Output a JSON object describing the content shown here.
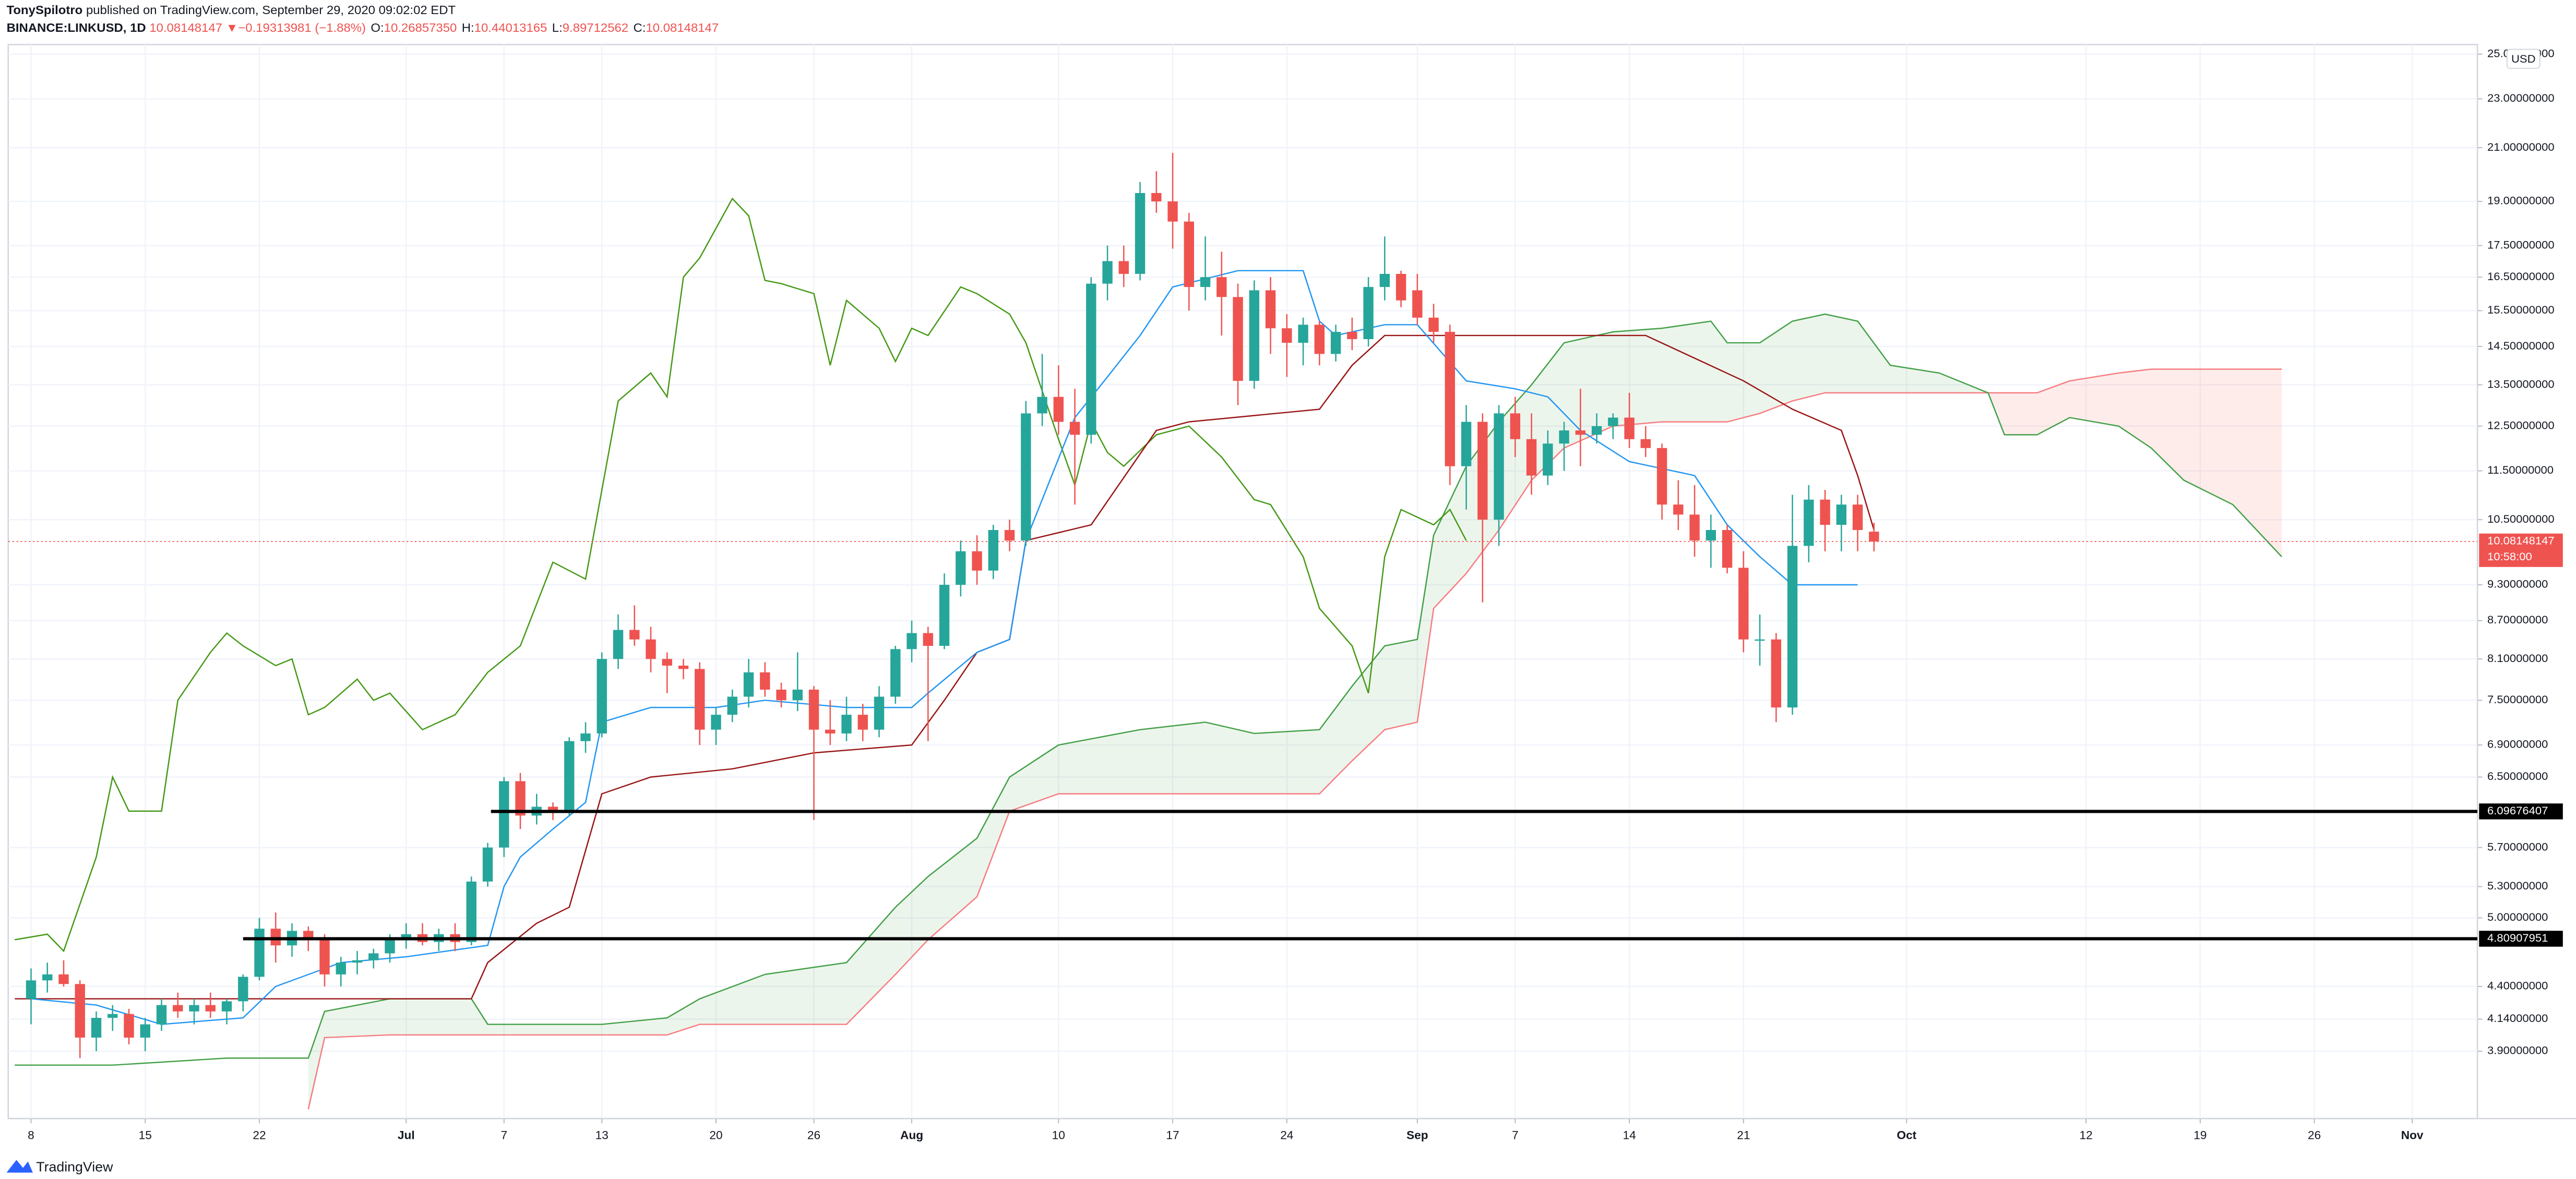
{
  "header": {
    "author": "TonySpilotro",
    "published": "published on TradingView.com, September 29, 2020 09:02:02 EDT",
    "symbol": "BINANCE:LINKUSD, 1D",
    "last": "10.08148147",
    "arrow": "▼",
    "change": "−0.19313981 (−1.88%)",
    "ohlc": [
      {
        "key": "O:",
        "value": "10.26857350"
      },
      {
        "key": "H:",
        "value": "10.44013165"
      },
      {
        "key": "L:",
        "value": "9.89712562"
      },
      {
        "key": "C:",
        "value": "10.08148147"
      }
    ]
  },
  "currency": "USD",
  "countdown": "10:58:00",
  "footer": "TradingView",
  "chart_data": {
    "type": "candlestick",
    "log_scale": true,
    "grid": true,
    "up_color": "#26a69a",
    "down_color": "#ef5350",
    "xlim": [
      -1.4,
      150
    ],
    "ylim": [
      3.44,
      25.3
    ],
    "xticks": [
      {
        "value": 0,
        "label": "8"
      },
      {
        "value": 7,
        "label": "15"
      },
      {
        "value": 14,
        "label": "22"
      },
      {
        "value": 23,
        "label": "Jul"
      },
      {
        "value": 29,
        "label": "7"
      },
      {
        "value": 35,
        "label": "13"
      },
      {
        "value": 42,
        "label": "20"
      },
      {
        "value": 48,
        "label": "26"
      },
      {
        "value": 54,
        "label": "Aug"
      },
      {
        "value": 63,
        "label": "10"
      },
      {
        "value": 70,
        "label": "17"
      },
      {
        "value": 77,
        "label": "24"
      },
      {
        "value": 85,
        "label": "Sep"
      },
      {
        "value": 91,
        "label": "7"
      },
      {
        "value": 98,
        "label": "14"
      },
      {
        "value": 105,
        "label": "21"
      },
      {
        "value": 115,
        "label": "Oct"
      },
      {
        "value": 126,
        "label": "12"
      },
      {
        "value": 133,
        "label": "19"
      },
      {
        "value": 140,
        "label": "26"
      },
      {
        "value": 146,
        "label": "Nov"
      }
    ],
    "yticks": [
      {
        "value": 25,
        "label": "25.00000000"
      },
      {
        "value": 23,
        "label": "23.00000000"
      },
      {
        "value": 21,
        "label": "21.00000000"
      },
      {
        "value": 19,
        "label": "19.00000000"
      },
      {
        "value": 17.5,
        "label": "17.50000000"
      },
      {
        "value": 16.5,
        "label": "16.50000000"
      },
      {
        "value": 15.5,
        "label": "15.50000000"
      },
      {
        "value": 14.5,
        "label": "14.50000000"
      },
      {
        "value": 13.5,
        "label": "13.50000000"
      },
      {
        "value": 12.5,
        "label": "12.50000000"
      },
      {
        "value": 11.5,
        "label": "11.50000000"
      },
      {
        "value": 10.5,
        "label": "10.50000000"
      },
      {
        "value": 9.3,
        "label": "9.30000000"
      },
      {
        "value": 8.7,
        "label": "8.70000000"
      },
      {
        "value": 8.1,
        "label": "8.10000000"
      },
      {
        "value": 7.5,
        "label": "7.50000000"
      },
      {
        "value": 6.9,
        "label": "6.90000000"
      },
      {
        "value": 6.5,
        "label": "6.50000000"
      },
      {
        "value": 5.7,
        "label": "5.70000000"
      },
      {
        "value": 5.3,
        "label": "5.30000000"
      },
      {
        "value": 5,
        "label": "5.00000000"
      },
      {
        "value": 4.4,
        "label": "4.40000000"
      },
      {
        "value": 4.14,
        "label": "4.14000000"
      },
      {
        "value": 3.9,
        "label": "3.90000000"
      }
    ],
    "candles": {
      "open": [
        4.3,
        4.45,
        4.5,
        4.42,
        4.0,
        4.15,
        4.18,
        4.0,
        4.1,
        4.25,
        4.2,
        4.25,
        4.2,
        4.28,
        4.48,
        4.9,
        4.75,
        4.88,
        4.8,
        4.5,
        4.6,
        4.62,
        4.68,
        4.8,
        4.85,
        4.78,
        4.85,
        4.78,
        5.35,
        5.7,
        6.45,
        6.05,
        6.15,
        6.1,
        6.95,
        7.05,
        8.1,
        8.55,
        8.4,
        8.1,
        8.0,
        7.95,
        7.1,
        7.3,
        7.55,
        7.9,
        7.65,
        7.5,
        7.65,
        7.1,
        7.05,
        7.3,
        7.1,
        7.55,
        8.25,
        8.5,
        8.3,
        9.3,
        9.9,
        9.55,
        10.3,
        10.1,
        12.8,
        13.2,
        12.6,
        12.3,
        16.3,
        17.0,
        16.6,
        19.3,
        19.0,
        18.3,
        16.2,
        16.5,
        15.9,
        13.6,
        16.1,
        15.0,
        14.6,
        15.1,
        14.3,
        14.9,
        14.7,
        16.2,
        16.6,
        16.1,
        15.3,
        14.9,
        11.6,
        12.6,
        10.5,
        12.8,
        12.2,
        11.4,
        12.1,
        12.4,
        12.3,
        12.5,
        12.7,
        12.2,
        12.0,
        10.8,
        10.6,
        10.1,
        10.3,
        9.6,
        8.4,
        8.4,
        7.4,
        10.0,
        10.9,
        10.4,
        10.8,
        10.2685735
      ],
      "high": [
        4.55,
        4.6,
        4.62,
        4.45,
        4.2,
        4.25,
        4.22,
        4.15,
        4.3,
        4.35,
        4.3,
        4.35,
        4.3,
        4.5,
        5.0,
        5.05,
        4.95,
        4.92,
        4.85,
        4.65,
        4.7,
        4.72,
        4.85,
        4.95,
        4.95,
        4.9,
        4.95,
        5.4,
        5.75,
        6.5,
        6.55,
        6.3,
        6.2,
        7.0,
        7.2,
        8.2,
        8.8,
        8.95,
        8.6,
        8.2,
        8.1,
        8.05,
        7.4,
        7.65,
        8.1,
        8.05,
        7.75,
        8.2,
        7.7,
        7.5,
        7.55,
        7.45,
        7.7,
        8.3,
        8.7,
        8.6,
        9.5,
        10.1,
        10.2,
        10.4,
        10.5,
        13.1,
        14.3,
        14.0,
        13.4,
        16.5,
        17.5,
        17.5,
        19.7,
        20.1,
        20.8,
        18.6,
        17.8,
        17.3,
        16.3,
        16.4,
        16.5,
        15.4,
        15.3,
        15.2,
        15.1,
        15.3,
        16.5,
        17.8,
        16.7,
        16.6,
        15.7,
        15.1,
        13.0,
        12.8,
        13.0,
        13.2,
        12.8,
        12.4,
        12.6,
        13.4,
        12.8,
        12.8,
        13.3,
        12.5,
        12.1,
        11.3,
        11.2,
        10.6,
        10.4,
        9.9,
        8.8,
        8.5,
        11.0,
        11.2,
        11.1,
        11.0,
        11.0,
        10.44013165
      ],
      "low": [
        4.1,
        4.35,
        4.4,
        3.85,
        3.9,
        4.05,
        3.95,
        3.9,
        4.05,
        4.15,
        4.1,
        4.15,
        4.1,
        4.2,
        4.45,
        4.6,
        4.65,
        4.7,
        4.4,
        4.4,
        4.5,
        4.55,
        4.6,
        4.72,
        4.75,
        4.7,
        4.7,
        4.75,
        5.3,
        5.6,
        5.9,
        5.95,
        6.0,
        6.05,
        6.8,
        7.0,
        7.95,
        8.3,
        7.9,
        7.6,
        7.8,
        6.9,
        6.9,
        7.2,
        7.4,
        7.55,
        7.4,
        7.35,
        6.0,
        6.9,
        6.95,
        6.95,
        7.0,
        7.45,
        8.05,
        6.95,
        8.25,
        9.1,
        9.3,
        9.4,
        9.9,
        10.0,
        12.5,
        12.3,
        10.8,
        12.1,
        15.8,
        16.2,
        16.4,
        18.6,
        17.4,
        15.5,
        15.8,
        14.8,
        13.0,
        13.4,
        14.3,
        13.7,
        14.0,
        14.0,
        14.1,
        14.4,
        14.5,
        15.8,
        15.6,
        15.1,
        14.6,
        11.2,
        10.7,
        9.0,
        10.0,
        11.8,
        11.0,
        11.2,
        11.5,
        11.6,
        12.1,
        12.2,
        12.0,
        11.8,
        10.5,
        10.3,
        9.8,
        9.6,
        9.5,
        8.2,
        8.0,
        7.2,
        7.3,
        9.7,
        9.9,
        9.9,
        9.9,
        9.89712562
      ],
      "close": [
        4.45,
        4.5,
        4.42,
        4.0,
        4.15,
        4.18,
        4.0,
        4.1,
        4.25,
        4.2,
        4.25,
        4.2,
        4.28,
        4.48,
        4.9,
        4.75,
        4.88,
        4.8,
        4.5,
        4.6,
        4.62,
        4.68,
        4.8,
        4.85,
        4.78,
        4.85,
        4.78,
        5.35,
        5.7,
        6.45,
        6.05,
        6.15,
        6.1,
        6.95,
        7.05,
        8.1,
        8.55,
        8.4,
        8.1,
        8.0,
        7.95,
        7.1,
        7.3,
        7.55,
        7.9,
        7.65,
        7.5,
        7.65,
        7.1,
        7.05,
        7.3,
        7.1,
        7.55,
        8.25,
        8.5,
        8.3,
        9.3,
        9.9,
        9.55,
        10.3,
        10.1,
        12.8,
        13.2,
        12.6,
        12.3,
        16.3,
        17.0,
        16.6,
        19.3,
        19.0,
        18.3,
        16.2,
        16.5,
        15.9,
        13.6,
        16.1,
        15.0,
        14.6,
        15.1,
        14.3,
        14.9,
        14.7,
        16.2,
        16.6,
        15.8,
        15.3,
        14.9,
        11.6,
        12.6,
        10.5,
        12.8,
        12.2,
        11.4,
        12.1,
        12.4,
        12.3,
        12.5,
        12.7,
        12.2,
        12.0,
        10.8,
        10.6,
        10.1,
        10.3,
        9.6,
        8.4,
        8.4,
        7.4,
        10.0,
        10.9,
        10.4,
        10.8,
        10.3,
        10.08148147
      ]
    },
    "conversion_line": {
      "color": "#2196f3",
      "x": [
        0,
        4,
        8,
        13,
        15,
        19,
        23,
        28,
        29,
        30,
        32,
        34,
        35,
        38,
        42,
        45,
        50,
        54,
        55,
        58,
        60,
        61,
        64,
        66,
        68,
        70,
        74,
        78,
        79,
        80,
        83,
        85,
        88,
        91,
        93,
        95,
        98,
        102,
        104,
        106,
        108,
        112
      ],
      "values": [
        4.3,
        4.25,
        4.1,
        4.15,
        4.4,
        4.6,
        4.65,
        4.75,
        5.3,
        5.6,
        5.9,
        6.2,
        7.2,
        7.4,
        7.4,
        7.5,
        7.4,
        7.4,
        7.6,
        8.2,
        8.4,
        10.1,
        12.7,
        13.7,
        14.8,
        16.2,
        16.7,
        16.7,
        15.2,
        14.8,
        15.1,
        15.1,
        13.6,
        13.4,
        13.2,
        12.4,
        11.7,
        11.4,
        10.4,
        9.8,
        9.3,
        9.3
      ]
    },
    "base_line": {
      "color": "#991515",
      "x": [
        -1,
        8,
        23,
        27,
        28,
        31,
        33,
        35,
        38,
        43,
        48,
        54,
        56,
        58,
        60,
        61,
        65,
        69,
        71,
        79,
        81,
        83,
        99,
        105,
        108,
        111,
        112,
        113
      ],
      "values": [
        4.3,
        4.3,
        4.3,
        4.3,
        4.6,
        4.95,
        5.1,
        6.3,
        6.5,
        6.6,
        6.8,
        6.9,
        7.5,
        8.2,
        8.4,
        10.1,
        10.4,
        12.4,
        12.6,
        12.9,
        14.0,
        14.8,
        14.8,
        13.6,
        12.9,
        12.4,
        11.4,
        10.3
      ]
    },
    "lagging_span": {
      "color": "#459915",
      "x": [
        -1,
        1,
        2,
        4,
        5,
        6,
        8,
        9,
        11,
        12,
        13,
        15,
        16,
        17,
        18,
        20,
        21,
        22,
        24,
        26,
        28,
        30,
        32,
        34,
        36,
        38,
        39,
        40,
        41,
        43,
        44,
        45,
        46,
        48,
        49,
        50,
        52,
        53,
        54,
        55,
        57,
        58,
        60,
        61,
        63,
        64,
        65,
        66,
        67,
        69,
        71,
        73,
        75,
        76,
        78,
        79,
        81,
        82,
        83,
        84,
        86,
        87,
        88
      ],
      "values": [
        4.8,
        4.85,
        4.7,
        5.6,
        6.5,
        6.1,
        6.1,
        7.5,
        8.2,
        8.5,
        8.3,
        8.0,
        8.1,
        7.3,
        7.4,
        7.8,
        7.5,
        7.6,
        7.1,
        7.3,
        7.9,
        8.3,
        9.7,
        9.4,
        13.1,
        13.8,
        13.2,
        16.5,
        17.1,
        19.1,
        18.5,
        16.4,
        16.3,
        16.0,
        14.0,
        15.8,
        15.0,
        14.1,
        15.0,
        14.8,
        16.2,
        16.0,
        15.4,
        14.6,
        12.2,
        11.2,
        12.6,
        11.9,
        11.6,
        12.3,
        12.5,
        11.8,
        10.9,
        10.8,
        9.8,
        8.9,
        8.3,
        7.6,
        9.8,
        10.7,
        10.4,
        10.7,
        10.1
      ]
    },
    "cloud": {
      "a_color": "#43a047",
      "b_color": "#f77c80",
      "up_fill": "rgba(67,160,71,0.1)",
      "down_fill": "rgba(244,67,54,0.1)",
      "x": [
        -1,
        5,
        12,
        17,
        18,
        22,
        27,
        28,
        35,
        39,
        41,
        45,
        50,
        53,
        55,
        58,
        60,
        63,
        68,
        72,
        75,
        79,
        81,
        83,
        85,
        86,
        88,
        90,
        92,
        94,
        97,
        100,
        103,
        104,
        106,
        108,
        110,
        112,
        114,
        117,
        120,
        121,
        123,
        125,
        128,
        130,
        132,
        135,
        138
      ],
      "span_a": [
        3.8,
        3.8,
        3.85,
        3.85,
        4.2,
        4.3,
        4.3,
        4.1,
        4.1,
        4.15,
        4.3,
        4.5,
        4.6,
        5.1,
        5.4,
        5.8,
        6.5,
        6.9,
        7.1,
        7.2,
        7.05,
        7.1,
        7.7,
        8.3,
        8.4,
        10.2,
        11.6,
        12.6,
        13.5,
        14.6,
        14.9,
        15.0,
        15.2,
        14.6,
        14.6,
        15.2,
        15.4,
        15.2,
        14.0,
        13.8,
        13.3,
        12.3,
        12.3,
        12.7,
        12.5,
        12.0,
        11.3,
        10.8,
        9.8
      ],
      "span_b": [
        null,
        null,
        null,
        3.5,
        4.0,
        4.02,
        4.02,
        4.02,
        4.02,
        4.02,
        4.1,
        4.1,
        4.1,
        4.5,
        4.8,
        5.2,
        6.1,
        6.3,
        6.3,
        6.3,
        6.3,
        6.3,
        6.7,
        7.1,
        7.2,
        8.9,
        9.5,
        10.3,
        11.3,
        12.0,
        12.5,
        12.6,
        12.6,
        12.6,
        12.8,
        13.1,
        13.3,
        13.3,
        13.3,
        13.3,
        13.3,
        13.3,
        13.3,
        13.6,
        13.8,
        13.9,
        13.9,
        13.9,
        13.9
      ]
    },
    "levels": [
      {
        "value": 6.09676407,
        "x": 28.2
      },
      {
        "value": 4.80907951,
        "x": 13
      }
    ],
    "price_line_color": "#ef5350"
  }
}
